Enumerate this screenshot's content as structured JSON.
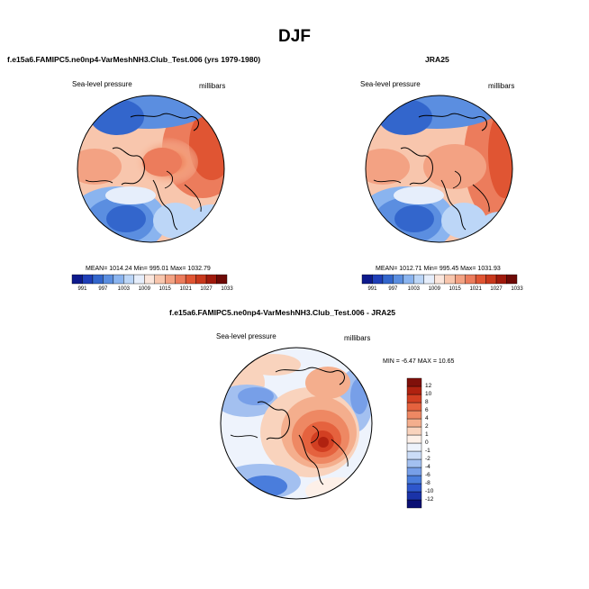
{
  "figure": {
    "title": "DJF",
    "variable_label": "Sea-level pressure",
    "units_label": "millibars"
  },
  "panels": {
    "model": {
      "title": "f.e15a6.FAMIPC5.ne0np4-VarMeshNH3.Club_Test.006 (yrs 1979-1980)",
      "stats": "MEAN= 1014.24  Min= 995.01  Max= 1032.79"
    },
    "obs": {
      "title": "JRA25",
      "stats": "MEAN= 1012.71  Min= 995.45  Max= 1031.93"
    },
    "diff": {
      "title": "f.e15a6.FAMIPC5.ne0np4-VarMeshNH3.Club_Test.006 - JRA25",
      "stats": "MIN = -6.47  MAX = 10.65"
    }
  },
  "colorbars": {
    "absolute": {
      "colors": [
        "#0d1a8c",
        "#1f3fb8",
        "#3366cc",
        "#5b8ee0",
        "#8ab4ef",
        "#bcd6f7",
        "#e6eefb",
        "#fbe6dc",
        "#f8c6ad",
        "#f3a283",
        "#ec7c5c",
        "#e05533",
        "#c8381c",
        "#a01a0c",
        "#6e0a06"
      ],
      "tick_labels": [
        "991",
        "997",
        "1003",
        "1009",
        "1015",
        "1021",
        "1027",
        "1033"
      ]
    },
    "difference": {
      "colors": [
        "#0a0f73",
        "#1a33a8",
        "#2e57cc",
        "#4a7ddc",
        "#779fe8",
        "#a3c0f0",
        "#cbdcf7",
        "#eef3fc",
        "#fdf0e8",
        "#f9d3bd",
        "#f4ae8d",
        "#ee8863",
        "#e5623e",
        "#d23f22",
        "#b02210",
        "#80100a"
      ],
      "tick_labels": [
        "12",
        "10",
        "8",
        "6",
        "4",
        "2",
        "1",
        "0",
        "-1",
        "-2",
        "-4",
        "-6",
        "-8",
        "-10",
        "-12"
      ]
    }
  }
}
